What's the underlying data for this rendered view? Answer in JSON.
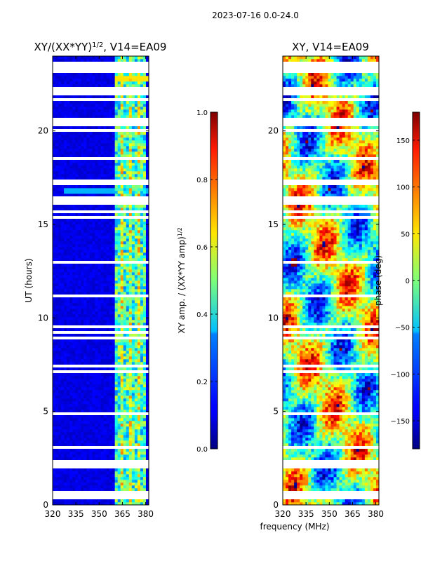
{
  "suptitle": "2023-07-16 0.0-24.0",
  "shared_xlabel": "frequency (MHz)",
  "chart_data": [
    {
      "type": "heatmap",
      "title_main": "XY/(XX*YY)",
      "title_exp": "1/2",
      "title_suffix": ", V14=EA09",
      "xlabel": "frequency (MHz)",
      "ylabel": "UT (hours)",
      "xlim": [
        320,
        382
      ],
      "ylim": [
        0,
        24
      ],
      "xticks": [
        320,
        335,
        350,
        365,
        380
      ],
      "yticks": [
        0,
        5,
        10,
        15,
        20
      ],
      "colormap": "jet",
      "colorbar": {
        "label_main": "XY amp. / (XX*YY amp)",
        "label_exp": "1/2",
        "range": [
          0.0,
          1.0
        ],
        "ticks": [
          "0.0",
          "0.2",
          "0.4",
          "0.6",
          "0.8",
          "1.0"
        ],
        "tick_values": [
          0.0,
          0.2,
          0.4,
          0.6,
          0.8,
          1.0
        ]
      },
      "bright_bands_mhz": [
        [
          360,
          381
        ]
      ],
      "flagged_gaps_ut": [
        [
          0.4,
          0.55
        ],
        [
          1.95,
          2.25
        ],
        [
          16.2,
          16.35
        ],
        [
          17.15,
          17.25
        ],
        [
          20.35,
          20.5
        ],
        [
          22.0,
          22.1
        ],
        [
          23.2,
          23.3
        ]
      ]
    },
    {
      "type": "heatmap",
      "title": "XY, V14=EA09",
      "xlabel": "frequency (MHz)",
      "ylabel": "",
      "xlim": [
        320,
        382
      ],
      "ylim": [
        0,
        24
      ],
      "xticks": [
        320,
        335,
        350,
        365,
        380
      ],
      "yticks": [
        0,
        5,
        10,
        15,
        20
      ],
      "colormap": "jet",
      "colorbar": {
        "label": "phase (deg)",
        "range": [
          -180,
          180
        ],
        "ticks": [
          "−150",
          "−100",
          "−50",
          "0",
          "50",
          "100",
          "150"
        ],
        "tick_values": [
          -150,
          -100,
          -50,
          0,
          50,
          100,
          150
        ]
      },
      "flagged_gaps_ut": [
        [
          0.4,
          0.55
        ],
        [
          1.95,
          2.25
        ],
        [
          16.2,
          16.35
        ],
        [
          17.15,
          17.25
        ],
        [
          20.35,
          20.5
        ],
        [
          22.0,
          22.1
        ],
        [
          23.2,
          23.3
        ]
      ]
    }
  ]
}
